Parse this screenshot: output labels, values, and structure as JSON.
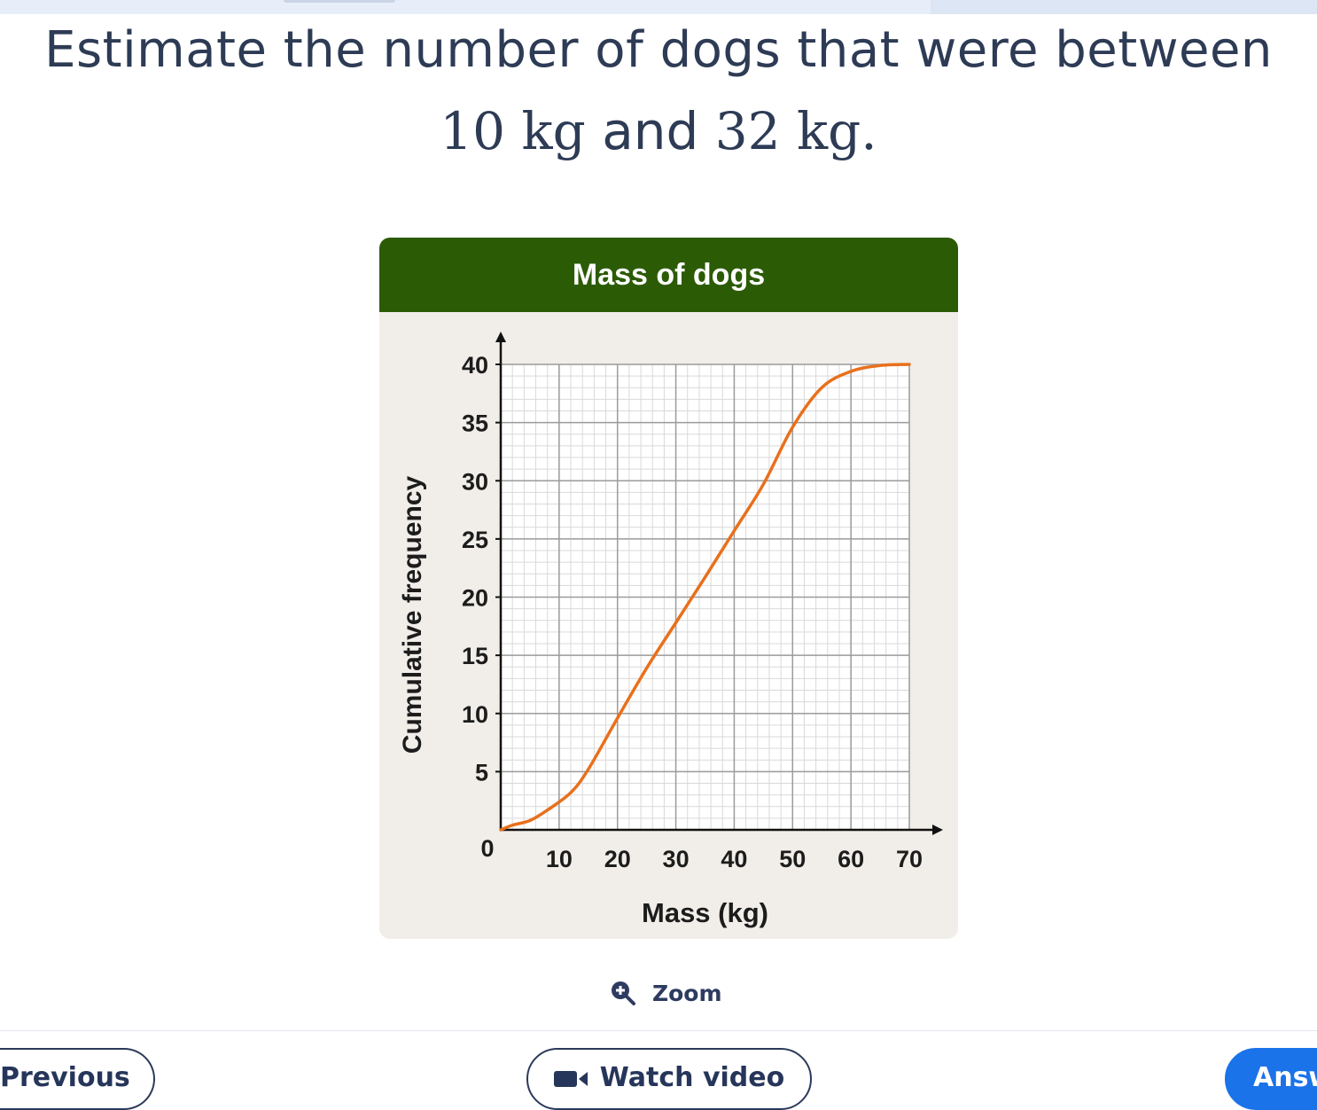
{
  "question": {
    "line1": "Estimate the number of dogs that were between",
    "value1": "10 kg",
    "connector": "and",
    "value2": "32 kg",
    "end": "."
  },
  "figure": {
    "title": "Mass of dogs",
    "title_bar_color": "#2c5b06",
    "background_color": "#f1eee9"
  },
  "chart_data": {
    "type": "line",
    "title": "Mass of dogs",
    "xlabel": "Mass (kg)",
    "ylabel": "Cumulative frequency",
    "xlim": [
      0,
      70
    ],
    "ylim": [
      0,
      40
    ],
    "x_ticks": [
      10,
      20,
      30,
      40,
      50,
      60,
      70
    ],
    "y_ticks": [
      5,
      10,
      15,
      20,
      25,
      30,
      35,
      40
    ],
    "origin_label": "0",
    "grid": true,
    "line_color": "#e8701c",
    "series": [
      {
        "x": [
          0,
          2,
          5,
          8,
          12,
          15,
          20,
          25,
          30,
          35,
          40,
          45,
          50,
          55,
          60,
          65,
          70
        ],
        "y": [
          0,
          0.4,
          0.8,
          1.7,
          3.2,
          5.2,
          9.6,
          13.9,
          17.8,
          21.7,
          25.7,
          29.7,
          34.6,
          38.0,
          39.4,
          39.9,
          40
        ]
      }
    ]
  },
  "controls": {
    "zoom_label": "Zoom",
    "previous_label": "Previous",
    "watch_video_label": "Watch video",
    "answer_label": "Answer",
    "answer_color": "#1a73e8",
    "zoom_icon": "zoom-in-icon",
    "video_icon": "video-camera-icon"
  }
}
